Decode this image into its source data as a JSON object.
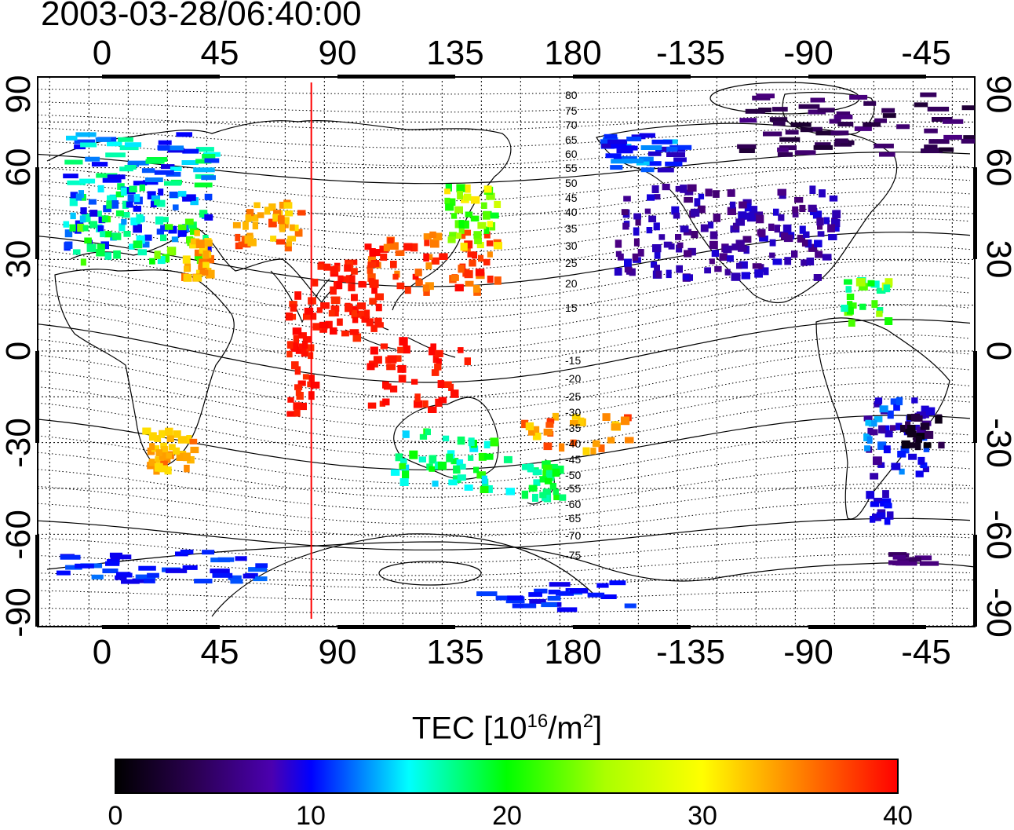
{
  "title": "2003-03-28/06:40:00",
  "x_ticks": [
    "0",
    "45",
    "90",
    "135",
    "180",
    "-135",
    "-90",
    "-45"
  ],
  "y_ticks": [
    "90",
    "60",
    "30",
    "0",
    "-30",
    "-60",
    "-90"
  ],
  "contour_labels": [
    "80",
    "75",
    "70",
    "65",
    "60",
    "55",
    "50",
    "45",
    "40",
    "35",
    "30",
    "25",
    "20",
    "15",
    "-15",
    "-20",
    "-25",
    "-30",
    "-35",
    "-40",
    "-45",
    "-50",
    "-55",
    "-60",
    "-65",
    "-70",
    "-75"
  ],
  "colorbar": {
    "label_main": "TEC  [10",
    "label_exp1": "16",
    "label_mid": "/m",
    "label_exp2": "2",
    "label_end": "]",
    "ticks": [
      "0",
      "10",
      "20",
      "30",
      "40"
    ],
    "range": [
      0,
      40
    ],
    "colors": [
      "#000000",
      "#4b0082",
      "#0000ff",
      "#00ffff",
      "#00ff00",
      "#ffff00",
      "#ff8c00",
      "#ff0000"
    ]
  },
  "marker_line": {
    "longitude": 80,
    "color": "#ff0000"
  }
}
